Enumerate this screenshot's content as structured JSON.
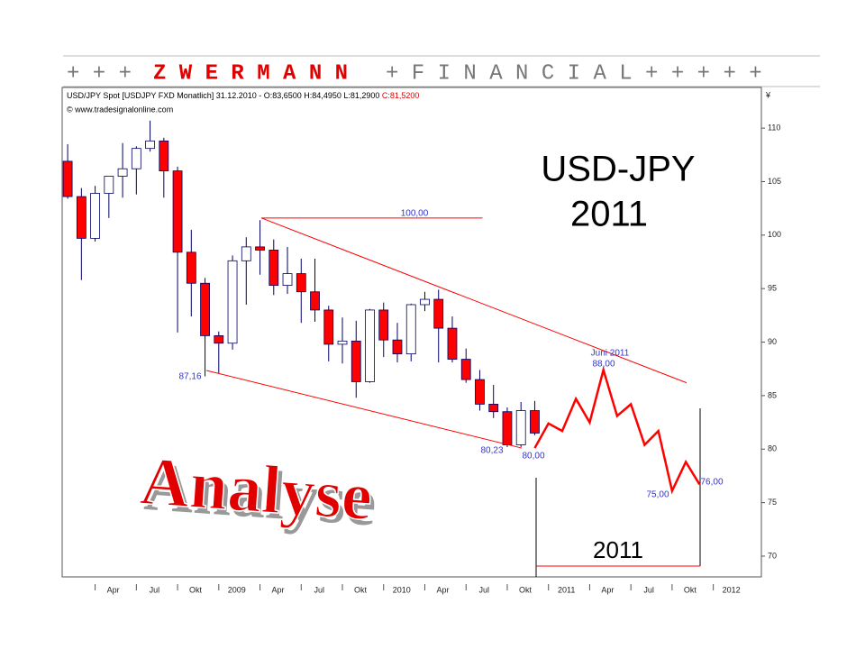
{
  "chart_data": {
    "type": "candlestick",
    "header": {
      "left": "+ + +",
      "brand": "Z W E R M A N N",
      "right": "+ F I N A N C I A L + + + + +"
    },
    "info": "USD/JPY Spot [USDJPY FXD Monatlich] 31.12.2010 - O:83,6500 H:84,4950 L:81,2900",
    "info_close": "C:81,5200",
    "source": "© www.tradesignalonline.com",
    "title": "USD-JPY",
    "subtitle": "2011",
    "overlay": "Analyse",
    "box_label": "2011",
    "y_unit": "¥",
    "x": [
      1,
      2,
      3,
      4,
      5,
      6,
      7,
      8,
      9,
      10,
      11,
      12,
      13,
      14,
      15,
      16,
      17,
      18,
      19,
      20,
      21,
      22,
      23,
      24,
      25,
      26,
      27,
      28,
      29,
      30,
      31,
      32,
      33,
      34,
      35
    ],
    "open": [
      106.9,
      103.6,
      99.7,
      103.9,
      105.5,
      106.2,
      108.1,
      108.8,
      106.0,
      98.4,
      95.5,
      90.6,
      89.9,
      97.6,
      98.9,
      98.6,
      95.3,
      96.4,
      94.7,
      93.0,
      89.8,
      90.1,
      86.3,
      93.0,
      90.2,
      88.9,
      93.5,
      94.0,
      91.3,
      88.4,
      86.5,
      84.2,
      83.5,
      80.4,
      83.6
    ],
    "high": [
      108.5,
      104.4,
      104.6,
      105.5,
      108.6,
      108.3,
      110.7,
      109.1,
      106.4,
      100.5,
      96.0,
      91.0,
      98.1,
      99.8,
      101.4,
      99.6,
      98.9,
      97.8,
      97.8,
      93.4,
      92.3,
      92.0,
      93.1,
      93.7,
      91.8,
      93.6,
      94.7,
      94.9,
      92.4,
      89.4,
      87.4,
      86.0,
      83.9,
      84.4,
      84.5
    ],
    "low": [
      103.4,
      95.8,
      99.4,
      101.6,
      103.5,
      103.8,
      107.8,
      103.5,
      90.9,
      92.4,
      86.8,
      87.1,
      89.3,
      93.5,
      96.3,
      94.4,
      94.5,
      91.8,
      91.9,
      88.2,
      88.0,
      84.8,
      86.2,
      88.6,
      88.1,
      88.2,
      92.9,
      88.1,
      88.1,
      86.2,
      83.6,
      82.9,
      80.2,
      80.2,
      81.3
    ],
    "close": [
      103.6,
      99.7,
      103.9,
      105.5,
      106.2,
      108.1,
      108.8,
      106.0,
      98.4,
      95.5,
      90.6,
      89.9,
      97.6,
      98.9,
      98.6,
      95.3,
      96.4,
      94.7,
      93.0,
      89.8,
      90.1,
      86.3,
      93.0,
      90.2,
      88.9,
      93.5,
      94.0,
      91.3,
      88.4,
      86.5,
      84.2,
      83.5,
      80.4,
      83.6,
      81.5
    ],
    "up_color": "#ffffff",
    "down_color": "#ff0000",
    "wick_color": "#000066",
    "forecast": {
      "x": [
        35,
        36,
        37,
        38,
        39,
        40,
        41,
        42,
        43,
        44,
        45,
        46,
        47
      ],
      "values": [
        80.1,
        82.4,
        81.7,
        84.7,
        82.5,
        87.4,
        83.1,
        84.2,
        80.4,
        81.7,
        76.1,
        78.8,
        76.7
      ],
      "color": "#ff0000"
    },
    "trendlines": [
      {
        "x": [
          15.1,
          46.05
        ],
        "values": [
          101.6,
          86.2
        ],
        "color": "#ff0000"
      },
      {
        "x": [
          15.1,
          31.2
        ],
        "values": [
          101.6,
          101.6
        ],
        "color": "#ff0000"
      },
      {
        "x": [
          11.1,
          34.05
        ],
        "values": [
          87.35,
          80.1
        ],
        "color": "#ff0000"
      }
    ],
    "annotations": [
      "100,00",
      "87,16",
      "80,23",
      "80,00",
      "Juni 2011",
      "88,00",
      "75,00",
      "76,00"
    ],
    "xlim": [
      0.6,
      51.5
    ],
    "ylim": [
      68.06,
      113.8
    ],
    "xticks": [
      {
        "value": 3,
        "label": "Apr"
      },
      {
        "value": 6,
        "label": "Jul"
      },
      {
        "value": 9,
        "label": "Okt"
      },
      {
        "value": 12,
        "label": "2009"
      },
      {
        "value": 15,
        "label": "Apr"
      },
      {
        "value": 18,
        "label": "Jul"
      },
      {
        "value": 21,
        "label": "Okt"
      },
      {
        "value": 24,
        "label": "2010"
      },
      {
        "value": 27,
        "label": "Apr"
      },
      {
        "value": 30,
        "label": "Jul"
      },
      {
        "value": 33,
        "label": "Okt"
      },
      {
        "value": 36,
        "label": "2011"
      },
      {
        "value": 39,
        "label": "Apr"
      },
      {
        "value": 42,
        "label": "Jul"
      },
      {
        "value": 45,
        "label": "Okt"
      },
      {
        "value": 48,
        "label": "2012"
      }
    ],
    "yticks": [
      70,
      75,
      80,
      85,
      90,
      95,
      100,
      105,
      110
    ]
  }
}
